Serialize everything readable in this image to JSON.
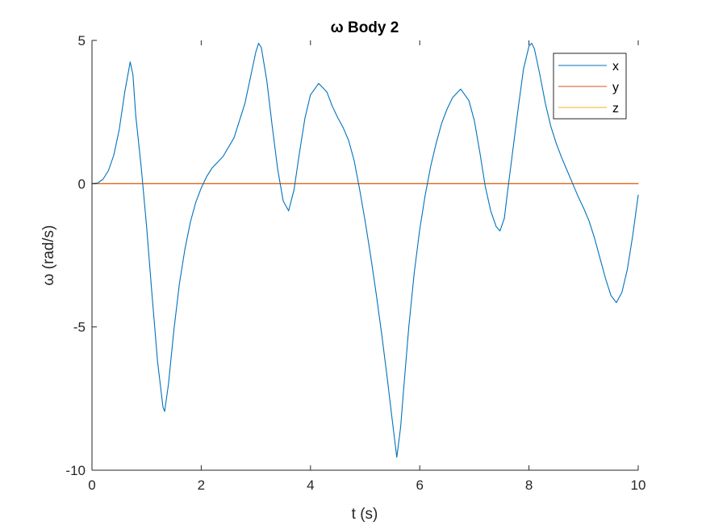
{
  "chart_data": {
    "type": "line",
    "title": "ω Body 2",
    "xlabel": "t (s)",
    "ylabel": "ω (rad/s)",
    "xlim": [
      0,
      10
    ],
    "ylim": [
      -10,
      5
    ],
    "xticks": [
      0,
      2,
      4,
      6,
      8,
      10
    ],
    "xtick_labels": [
      "0",
      "2",
      "4",
      "6",
      "8",
      "10"
    ],
    "yticks": [
      -10,
      -5,
      0,
      5
    ],
    "ytick_labels": [
      "-10",
      "-5",
      "0",
      "5"
    ],
    "grid": false,
    "legend": "top-right",
    "series": [
      {
        "name": "x",
        "color": "#0072BD",
        "points": [
          [
            0,
            0
          ],
          [
            0.1,
            0.02
          ],
          [
            0.2,
            0.15
          ],
          [
            0.3,
            0.45
          ],
          [
            0.4,
            1.0
          ],
          [
            0.5,
            1.9
          ],
          [
            0.6,
            3.2
          ],
          [
            0.7,
            4.25
          ],
          [
            0.75,
            3.8
          ],
          [
            0.8,
            2.4
          ],
          [
            0.9,
            0.6
          ],
          [
            1.0,
            -1.5
          ],
          [
            1.1,
            -3.9
          ],
          [
            1.2,
            -6.2
          ],
          [
            1.3,
            -7.8
          ],
          [
            1.33,
            -7.95
          ],
          [
            1.4,
            -7.0
          ],
          [
            1.5,
            -5.1
          ],
          [
            1.6,
            -3.5
          ],
          [
            1.7,
            -2.3
          ],
          [
            1.8,
            -1.35
          ],
          [
            1.9,
            -0.65
          ],
          [
            2.0,
            -0.15
          ],
          [
            2.1,
            0.25
          ],
          [
            2.2,
            0.55
          ],
          [
            2.4,
            0.95
          ],
          [
            2.6,
            1.6
          ],
          [
            2.8,
            2.8
          ],
          [
            2.9,
            3.7
          ],
          [
            3.0,
            4.6
          ],
          [
            3.05,
            4.9
          ],
          [
            3.1,
            4.75
          ],
          [
            3.2,
            3.6
          ],
          [
            3.3,
            2.0
          ],
          [
            3.4,
            0.5
          ],
          [
            3.5,
            -0.6
          ],
          [
            3.6,
            -0.95
          ],
          [
            3.7,
            -0.2
          ],
          [
            3.8,
            1.1
          ],
          [
            3.9,
            2.3
          ],
          [
            4.0,
            3.1
          ],
          [
            4.15,
            3.5
          ],
          [
            4.3,
            3.2
          ],
          [
            4.4,
            2.7
          ],
          [
            4.5,
            2.3
          ],
          [
            4.6,
            1.95
          ],
          [
            4.7,
            1.5
          ],
          [
            4.8,
            0.8
          ],
          [
            4.9,
            -0.2
          ],
          [
            5.0,
            -1.3
          ],
          [
            5.1,
            -2.5
          ],
          [
            5.2,
            -3.8
          ],
          [
            5.3,
            -5.2
          ],
          [
            5.4,
            -6.7
          ],
          [
            5.5,
            -8.3
          ],
          [
            5.58,
            -9.55
          ],
          [
            5.65,
            -8.5
          ],
          [
            5.7,
            -7.3
          ],
          [
            5.8,
            -5.0
          ],
          [
            5.9,
            -3.1
          ],
          [
            6.0,
            -1.6
          ],
          [
            6.1,
            -0.4
          ],
          [
            6.2,
            0.6
          ],
          [
            6.3,
            1.4
          ],
          [
            6.4,
            2.1
          ],
          [
            6.5,
            2.6
          ],
          [
            6.6,
            3.0
          ],
          [
            6.75,
            3.3
          ],
          [
            6.9,
            2.9
          ],
          [
            7.0,
            2.2
          ],
          [
            7.1,
            1.1
          ],
          [
            7.2,
            -0.1
          ],
          [
            7.3,
            -0.95
          ],
          [
            7.4,
            -1.5
          ],
          [
            7.47,
            -1.65
          ],
          [
            7.55,
            -1.2
          ],
          [
            7.6,
            -0.4
          ],
          [
            7.7,
            1.1
          ],
          [
            7.8,
            2.6
          ],
          [
            7.9,
            4.0
          ],
          [
            8.0,
            4.8
          ],
          [
            8.05,
            4.9
          ],
          [
            8.1,
            4.7
          ],
          [
            8.2,
            3.8
          ],
          [
            8.3,
            2.8
          ],
          [
            8.4,
            2.0
          ],
          [
            8.5,
            1.4
          ],
          [
            8.6,
            0.9
          ],
          [
            8.7,
            0.45
          ],
          [
            8.8,
            0.0
          ],
          [
            8.9,
            -0.45
          ],
          [
            9.0,
            -0.85
          ],
          [
            9.1,
            -1.3
          ],
          [
            9.2,
            -1.9
          ],
          [
            9.3,
            -2.6
          ],
          [
            9.4,
            -3.3
          ],
          [
            9.5,
            -3.9
          ],
          [
            9.6,
            -4.15
          ],
          [
            9.7,
            -3.8
          ],
          [
            9.8,
            -3.0
          ],
          [
            9.9,
            -1.8
          ],
          [
            10.0,
            -0.4
          ]
        ]
      },
      {
        "name": "y",
        "color": "#D95319",
        "points": [
          [
            0,
            0
          ],
          [
            10,
            0
          ]
        ]
      },
      {
        "name": "z",
        "color": "#EDB120",
        "points": [
          [
            0,
            0
          ],
          [
            10,
            0
          ]
        ]
      }
    ]
  }
}
